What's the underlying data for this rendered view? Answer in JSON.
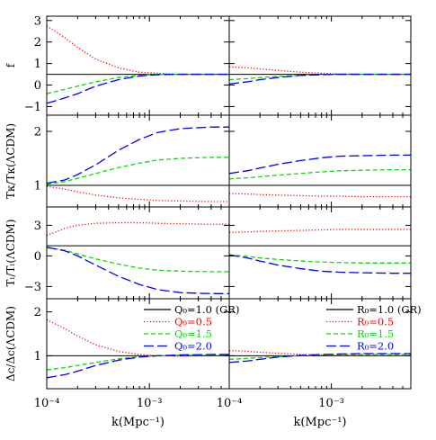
{
  "chart_data": {
    "type": "line",
    "layout": "4 rows x 2 columns of panels, shared log x-axis",
    "x_scale": "log",
    "xlim": [
      0.0001,
      0.006
    ],
    "xlabel": "k(Mpc⁻¹)",
    "x_ticks": [
      {
        "value": 0.0001,
        "label": "10⁻⁴"
      },
      {
        "value": 0.001,
        "label": "10⁻³"
      }
    ],
    "reference_line": "horizontal black solid line at GR value in every panel",
    "rows": [
      {
        "ylabel": "f",
        "ylim": [
          -1.4,
          3.2
        ],
        "y_ticks": [
          {
            "value": -1,
            "label": "−1"
          },
          {
            "value": 0,
            "label": "0"
          },
          {
            "value": 1,
            "label": "1"
          },
          {
            "value": 2,
            "label": "2"
          },
          {
            "value": 3,
            "label": "3"
          }
        ],
        "reference": 0.5
      },
      {
        "ylabel": "Tκ/Tκ(ΛCDM)",
        "ylim": [
          0.6,
          2.3
        ],
        "y_ticks": [
          {
            "value": 1,
            "label": "1"
          },
          {
            "value": 2,
            "label": "2"
          }
        ],
        "reference": 1.0
      },
      {
        "ylabel": "Tₗ/Tₗ(ΛCDM)",
        "ylim": [
          -4.2,
          4.8
        ],
        "y_ticks": [
          {
            "value": -3,
            "label": "−3"
          },
          {
            "value": 0,
            "label": "0"
          },
          {
            "value": 3,
            "label": "3"
          }
        ],
        "reference": 1.0
      },
      {
        "ylabel": "Δc/Δc(ΛCDM)",
        "ylim": [
          0.25,
          2.3
        ],
        "y_ticks": [
          {
            "value": 1,
            "label": "1"
          },
          {
            "value": 2,
            "label": "2"
          }
        ],
        "reference": 1.0
      }
    ],
    "columns": [
      {
        "legend": [
          "Q₀=1.0 (GR)",
          "Q₀=0.5",
          "Q₀=1.5",
          "Q₀=2.0"
        ],
        "series": [
          {
            "style": "dotted",
            "color": "#ff0000",
            "rows": [
              {
                "x": [
                  0.0001,
                  0.00015,
                  0.0002,
                  0.0003,
                  0.0005,
                  0.0008,
                  0.0012,
                  0.002,
                  0.004,
                  0.006
                ],
                "y": [
                  2.75,
                  2.2,
                  1.75,
                  1.2,
                  0.8,
                  0.6,
                  0.55,
                  0.5,
                  0.5,
                  0.5
                ]
              },
              {
                "x": [
                  0.0001,
                  0.00015,
                  0.0002,
                  0.0003,
                  0.0005,
                  0.0008,
                  0.0012,
                  0.002,
                  0.004,
                  0.006
                ],
                "y": [
                  0.98,
                  0.93,
                  0.88,
                  0.82,
                  0.77,
                  0.74,
                  0.72,
                  0.71,
                  0.7,
                  0.7
                ]
              },
              {
                "x": [
                  0.0001,
                  0.00015,
                  0.0002,
                  0.0003,
                  0.0005,
                  0.0008,
                  0.0012,
                  0.002,
                  0.004,
                  0.006
                ],
                "y": [
                  2.0,
                  2.7,
                  3.0,
                  3.2,
                  3.25,
                  3.25,
                  3.2,
                  3.15,
                  3.1,
                  3.1
                ]
              },
              {
                "x": [
                  0.0001,
                  0.00015,
                  0.0002,
                  0.0003,
                  0.0005,
                  0.0008,
                  0.0012,
                  0.002,
                  0.004,
                  0.006
                ],
                "y": [
                  1.82,
                  1.62,
                  1.45,
                  1.25,
                  1.1,
                  1.03,
                  1.0,
                  0.99,
                  1.0,
                  1.0
                ]
              }
            ]
          },
          {
            "style": "short-dash",
            "color": "#00dd00",
            "rows": [
              {
                "x": [
                  0.0001,
                  0.00015,
                  0.0002,
                  0.0003,
                  0.0005,
                  0.0008,
                  0.0012,
                  0.002,
                  0.004,
                  0.006
                ],
                "y": [
                  -0.4,
                  -0.2,
                  -0.05,
                  0.15,
                  0.35,
                  0.45,
                  0.5,
                  0.5,
                  0.5,
                  0.5
                ]
              },
              {
                "x": [
                  0.0001,
                  0.00015,
                  0.0002,
                  0.0003,
                  0.0005,
                  0.0008,
                  0.0012,
                  0.002,
                  0.004,
                  0.006
                ],
                "y": [
                  1.02,
                  1.07,
                  1.13,
                  1.22,
                  1.33,
                  1.41,
                  1.47,
                  1.5,
                  1.52,
                  1.52
                ]
              },
              {
                "x": [
                  0.0001,
                  0.00015,
                  0.0002,
                  0.0003,
                  0.0005,
                  0.0008,
                  0.0012,
                  0.002,
                  0.004,
                  0.006
                ],
                "y": [
                  0.8,
                  0.55,
                  0.2,
                  -0.3,
                  -0.8,
                  -1.2,
                  -1.4,
                  -1.5,
                  -1.55,
                  -1.55
                ]
              },
              {
                "x": [
                  0.0001,
                  0.00015,
                  0.0002,
                  0.0003,
                  0.0005,
                  0.0008,
                  0.0012,
                  0.002,
                  0.004,
                  0.006
                ],
                "y": [
                  0.68,
                  0.73,
                  0.78,
                  0.85,
                  0.93,
                  0.98,
                  1.0,
                  1.01,
                  1.02,
                  1.02
                ]
              }
            ]
          },
          {
            "style": "long-dash",
            "color": "#0000ff",
            "rows": [
              {
                "x": [
                  0.0001,
                  0.00015,
                  0.0002,
                  0.0003,
                  0.0005,
                  0.0008,
                  0.0012,
                  0.002,
                  0.004,
                  0.006
                ],
                "y": [
                  -0.85,
                  -0.6,
                  -0.4,
                  -0.05,
                  0.25,
                  0.42,
                  0.48,
                  0.5,
                  0.5,
                  0.5
                ]
              },
              {
                "x": [
                  0.0001,
                  0.00015,
                  0.0002,
                  0.0003,
                  0.0005,
                  0.0008,
                  0.0012,
                  0.002,
                  0.004,
                  0.006
                ],
                "y": [
                  1.04,
                  1.1,
                  1.2,
                  1.38,
                  1.65,
                  1.85,
                  1.98,
                  2.05,
                  2.08,
                  2.08
                ]
              },
              {
                "x": [
                  0.0001,
                  0.00015,
                  0.0002,
                  0.0003,
                  0.0005,
                  0.0008,
                  0.0012,
                  0.002,
                  0.004,
                  0.006
                ],
                "y": [
                  0.85,
                  0.5,
                  0.0,
                  -0.9,
                  -2.0,
                  -2.8,
                  -3.3,
                  -3.6,
                  -3.7,
                  -3.7
                ]
              },
              {
                "x": [
                  0.0001,
                  0.00015,
                  0.0002,
                  0.0003,
                  0.0005,
                  0.0008,
                  0.0012,
                  0.002,
                  0.004,
                  0.006
                ],
                "y": [
                  0.5,
                  0.57,
                  0.65,
                  0.78,
                  0.9,
                  0.97,
                  1.0,
                  1.02,
                  1.03,
                  1.03
                ]
              }
            ]
          }
        ]
      },
      {
        "legend": [
          "R₀=1.0 (GR)",
          "R₀=0.5",
          "R₀=1.5",
          "R₀=2.0"
        ],
        "series": [
          {
            "style": "dotted",
            "color": "#ff0000",
            "rows": [
              {
                "x": [
                  0.0001,
                  0.00015,
                  0.0002,
                  0.0003,
                  0.0005,
                  0.0008,
                  0.0012,
                  0.002,
                  0.004,
                  0.006
                ],
                "y": [
                  0.85,
                  0.8,
                  0.75,
                  0.68,
                  0.6,
                  0.55,
                  0.52,
                  0.5,
                  0.5,
                  0.5
                ]
              },
              {
                "x": [
                  0.0001,
                  0.00015,
                  0.0002,
                  0.0003,
                  0.0005,
                  0.0008,
                  0.0012,
                  0.002,
                  0.004,
                  0.006
                ],
                "y": [
                  0.85,
                  0.84,
                  0.83,
                  0.82,
                  0.81,
                  0.8,
                  0.8,
                  0.79,
                  0.79,
                  0.79
                ]
              },
              {
                "x": [
                  0.0001,
                  0.00015,
                  0.0002,
                  0.0003,
                  0.0005,
                  0.0008,
                  0.0012,
                  0.002,
                  0.004,
                  0.006
                ],
                "y": [
                  2.3,
                  2.35,
                  2.4,
                  2.45,
                  2.5,
                  2.55,
                  2.6,
                  2.6,
                  2.6,
                  2.6
                ]
              },
              {
                "x": [
                  0.0001,
                  0.00015,
                  0.0002,
                  0.0003,
                  0.0005,
                  0.0008,
                  0.0012,
                  0.002,
                  0.004,
                  0.006
                ],
                "y": [
                  1.12,
                  1.1,
                  1.08,
                  1.06,
                  1.03,
                  1.02,
                  1.01,
                  1.0,
                  1.0,
                  1.0
                ]
              }
            ]
          },
          {
            "style": "short-dash",
            "color": "#00dd00",
            "rows": [
              {
                "x": [
                  0.0001,
                  0.00015,
                  0.0002,
                  0.0003,
                  0.0005,
                  0.0008,
                  0.0012,
                  0.002,
                  0.004,
                  0.006
                ],
                "y": [
                  0.25,
                  0.3,
                  0.35,
                  0.4,
                  0.45,
                  0.48,
                  0.5,
                  0.5,
                  0.5,
                  0.5
                ]
              },
              {
                "x": [
                  0.0001,
                  0.00015,
                  0.0002,
                  0.0003,
                  0.0005,
                  0.0008,
                  0.0012,
                  0.002,
                  0.004,
                  0.006
                ],
                "y": [
                  1.12,
                  1.14,
                  1.16,
                  1.19,
                  1.22,
                  1.25,
                  1.27,
                  1.28,
                  1.29,
                  1.29
                ]
              },
              {
                "x": [
                  0.0001,
                  0.00015,
                  0.0002,
                  0.0003,
                  0.0005,
                  0.0008,
                  0.0012,
                  0.002,
                  0.004,
                  0.006
                ],
                "y": [
                  0.1,
                  -0.05,
                  -0.2,
                  -0.35,
                  -0.5,
                  -0.6,
                  -0.65,
                  -0.7,
                  -0.7,
                  -0.7
                ]
              },
              {
                "x": [
                  0.0001,
                  0.00015,
                  0.0002,
                  0.0003,
                  0.0005,
                  0.0008,
                  0.0012,
                  0.002,
                  0.004,
                  0.006
                ],
                "y": [
                  0.92,
                  0.94,
                  0.96,
                  0.98,
                  1.0,
                  1.02,
                  1.03,
                  1.03,
                  1.03,
                  1.03
                ]
              }
            ]
          },
          {
            "style": "long-dash",
            "color": "#0000ff",
            "rows": [
              {
                "x": [
                  0.0001,
                  0.00015,
                  0.0002,
                  0.0003,
                  0.0005,
                  0.0008,
                  0.0012,
                  0.002,
                  0.004,
                  0.006
                ],
                "y": [
                  0.05,
                  0.15,
                  0.25,
                  0.35,
                  0.45,
                  0.48,
                  0.5,
                  0.5,
                  0.5,
                  0.5
                ]
              },
              {
                "x": [
                  0.0001,
                  0.00015,
                  0.0002,
                  0.0003,
                  0.0005,
                  0.0008,
                  0.0012,
                  0.002,
                  0.004,
                  0.006
                ],
                "y": [
                  1.22,
                  1.27,
                  1.32,
                  1.39,
                  1.46,
                  1.51,
                  1.54,
                  1.55,
                  1.56,
                  1.56
                ]
              },
              {
                "x": [
                  0.0001,
                  0.00015,
                  0.0002,
                  0.0003,
                  0.0005,
                  0.0008,
                  0.0012,
                  0.002,
                  0.004,
                  0.006
                ],
                "y": [
                  0.1,
                  -0.2,
                  -0.5,
                  -0.9,
                  -1.25,
                  -1.5,
                  -1.6,
                  -1.65,
                  -1.7,
                  -1.7
                ]
              },
              {
                "x": [
                  0.0001,
                  0.00015,
                  0.0002,
                  0.0003,
                  0.0005,
                  0.0008,
                  0.0012,
                  0.002,
                  0.004,
                  0.006
                ],
                "y": [
                  0.85,
                  0.88,
                  0.92,
                  0.97,
                  1.01,
                  1.03,
                  1.04,
                  1.05,
                  1.05,
                  1.05
                ]
              }
            ]
          }
        ]
      }
    ]
  }
}
